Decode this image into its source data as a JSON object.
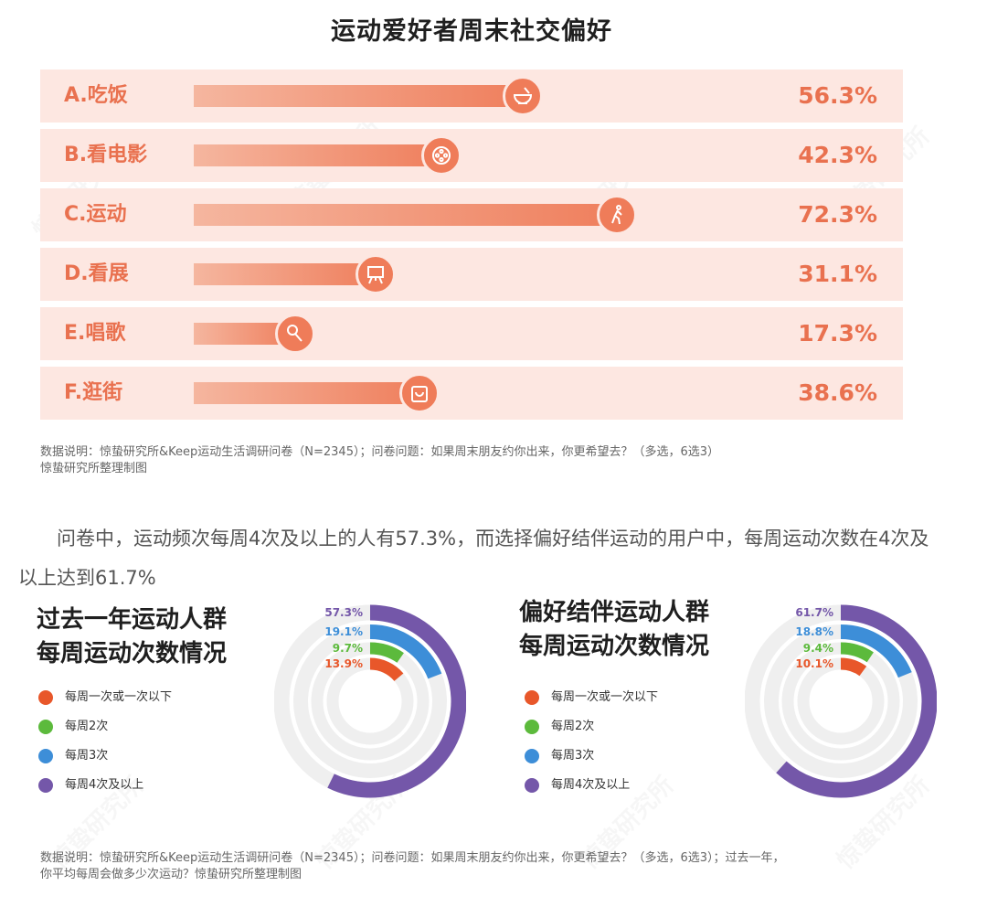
{
  "title": "运动爱好者周末社交偏好",
  "colors": {
    "accent": "#e9714f",
    "bar_bg": "#fde7e1",
    "once_or_less": "#e8572a",
    "twice": "#5cba3c",
    "three": "#3d8ed8",
    "four_plus": "#7457a9",
    "ring_bg": "#efefef"
  },
  "chart_data": [
    {
      "type": "bar",
      "title": "运动爱好者周末社交偏好",
      "orientation": "horizontal",
      "categories": [
        "A.吃饭",
        "B.看电影",
        "C.运动",
        "D.看展",
        "E.唱歌",
        "F.逛街"
      ],
      "values": [
        56.3,
        42.3,
        72.3,
        31.1,
        17.3,
        38.6
      ],
      "value_labels": [
        "56.3%",
        "42.3%",
        "72.3%",
        "31.1%",
        "17.3%",
        "38.6%"
      ],
      "icons": [
        "bowl-icon",
        "film-reel-icon",
        "walking-person-icon",
        "easel-icon",
        "microphone-icon",
        "shopping-bag-icon"
      ],
      "xlim": [
        0,
        100
      ]
    },
    {
      "type": "pie",
      "subtype": "radial-rings",
      "title": "过去一年运动人群\n每周运动次数情况",
      "categories": [
        "每周一次或一次以下",
        "每周2次",
        "每周3次",
        "每周4次及以上"
      ],
      "values": [
        13.9,
        9.7,
        19.1,
        57.3
      ],
      "value_labels": [
        "13.9%",
        "9.7%",
        "19.1%",
        "57.3%"
      ]
    },
    {
      "type": "pie",
      "subtype": "radial-rings",
      "title": "偏好结伴运动人群\n每周运动次数情况",
      "categories": [
        "每周一次或一次以下",
        "每周2次",
        "每周3次",
        "每周4次及以上"
      ],
      "values": [
        10.1,
        9.4,
        18.8,
        61.7
      ],
      "value_labels": [
        "10.1%",
        "9.4%",
        "18.8%",
        "61.7%"
      ]
    }
  ],
  "note1": {
    "line1": "数据说明：惊蛰研究所&Keep运动生活调研问卷（N=2345）；问卷问题：如果周末朋友约你出来，你更希望去？（多选，6选3）",
    "line2": "惊蛰研究所整理制图"
  },
  "paragraph": "问卷中，运动频次每周4次及以上的人有57.3%，而选择偏好结伴运动的用户中，每周运动次数在4次及以上达到61.7%",
  "note2": {
    "line1": "数据说明：惊蛰研究所&Keep运动生活调研问卷（N=2345）；问卷问题：如果周末朋友约你出来，你更希望去？（多选，6选3）；过去一年，",
    "line2": "你平均每周会做多少次运动？惊蛰研究所整理制图"
  },
  "watermark": "惊蛰研究所"
}
